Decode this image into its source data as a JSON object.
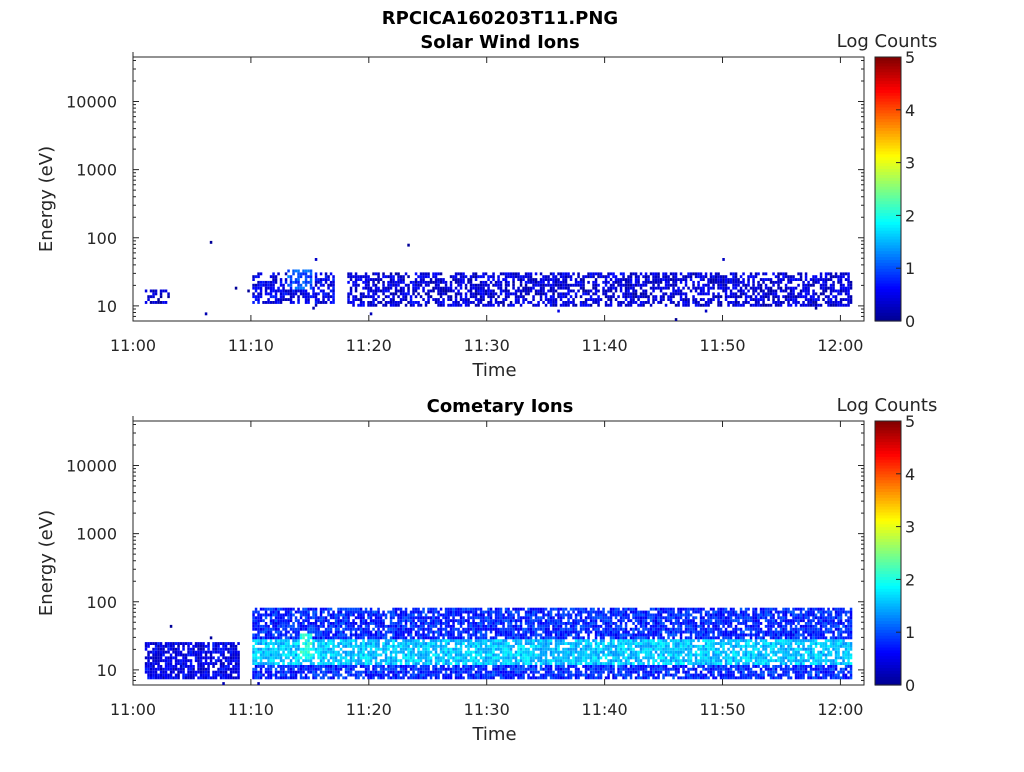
{
  "figure_title": "RPCICA160203T11.PNG",
  "colors": {
    "jet": [
      "#00008f",
      "#0000ff",
      "#0080ff",
      "#00ffff",
      "#80ff80",
      "#ffff00",
      "#ff8000",
      "#ff0000",
      "#800000"
    ],
    "axis": "#262626"
  },
  "chart_data": [
    {
      "type": "heatmap",
      "title": "Solar Wind Ions",
      "xlabel": "Time",
      "ylabel": "Energy (eV)",
      "yscale": "log",
      "ylim": [
        6,
        45000
      ],
      "xlim": [
        "11:00",
        "12:02"
      ],
      "x_ticks": [
        "11:00",
        "11:10",
        "11:20",
        "11:30",
        "11:40",
        "11:50",
        "12:00"
      ],
      "y_ticks": [
        "10",
        "100",
        "1000",
        "10000"
      ],
      "colorbar": {
        "label": "Log Counts",
        "range": [
          0,
          5
        ],
        "ticks": [
          "0",
          "1",
          "2",
          "3",
          "4",
          "5"
        ]
      },
      "data_extent": {
        "x_start": "11:01",
        "x_end": "12:01"
      },
      "bands": [
        {
          "t_start": "11:01",
          "t_end": "11:03",
          "e_min": 11,
          "e_max": 18,
          "log_counts": 0.3
        },
        {
          "t_start": "11:10",
          "t_end": "11:17",
          "e_min": 11,
          "e_max": 30,
          "log_counts": 0.5
        },
        {
          "t_start": "11:13",
          "t_end": "11:15",
          "e_min": 18,
          "e_max": 35,
          "log_counts": 1.0
        },
        {
          "t_start": "11:18",
          "t_end": "12:01",
          "e_min": 10,
          "e_max": 30,
          "log_counts": 0.4
        }
      ]
    },
    {
      "type": "heatmap",
      "title": "Cometary Ions",
      "xlabel": "Time",
      "ylabel": "Energy (eV)",
      "yscale": "log",
      "ylim": [
        6,
        45000
      ],
      "xlim": [
        "11:00",
        "12:02"
      ],
      "x_ticks": [
        "11:00",
        "11:10",
        "11:20",
        "11:30",
        "11:40",
        "11:50",
        "12:00"
      ],
      "y_ticks": [
        "10",
        "100",
        "1000",
        "10000"
      ],
      "colorbar": {
        "label": "Log Counts",
        "range": [
          0,
          5
        ],
        "ticks": [
          "0",
          "1",
          "2",
          "3",
          "4",
          "5"
        ]
      },
      "data_extent": {
        "x_start": "11:01",
        "x_end": "12:01"
      },
      "bands": [
        {
          "t_start": "11:01",
          "t_end": "11:09",
          "e_min": 7,
          "e_max": 25,
          "log_counts": 0.5
        },
        {
          "t_start": "11:10",
          "t_end": "12:01",
          "e_min": 7,
          "e_max": 80,
          "log_counts": 0.8
        },
        {
          "t_start": "11:10",
          "t_end": "12:01",
          "e_min": 12,
          "e_max": 28,
          "log_counts": 1.6
        },
        {
          "t_start": "11:14",
          "t_end": "11:15",
          "e_min": 14,
          "e_max": 35,
          "log_counts": 2.0
        }
      ]
    }
  ]
}
